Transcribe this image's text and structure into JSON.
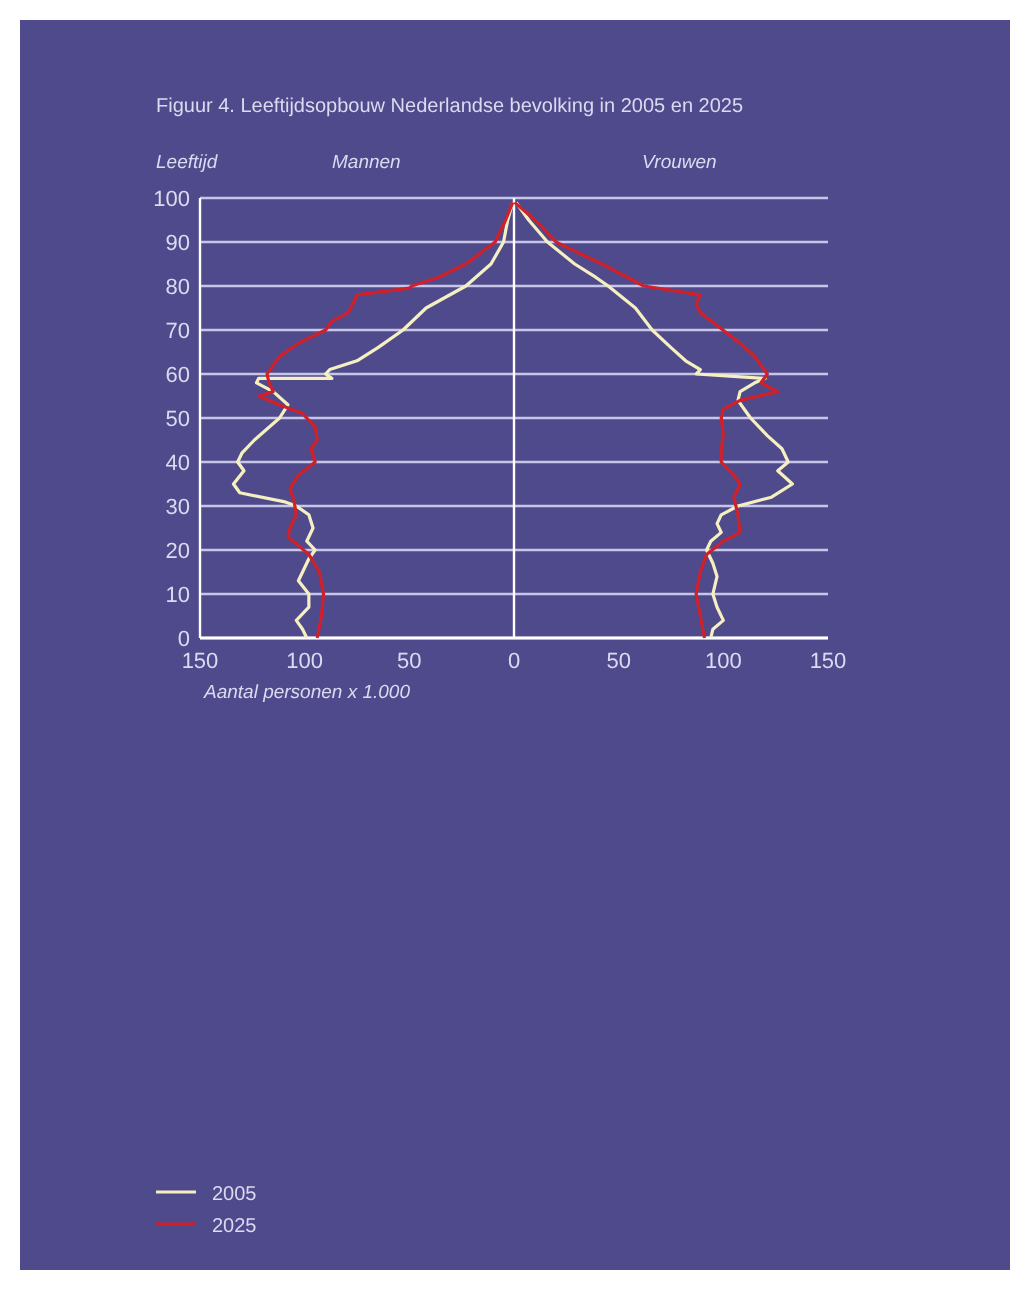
{
  "chart_data": {
    "type": "line",
    "title": "Figuur 4. Leeftijdsopbouw Nederlandse bevolking in 2005 en 2025",
    "ylabel": "Leeftijd",
    "xlabel": "Aantal personen x 1.000",
    "annotations": [
      "Mannen",
      "Vrouwen"
    ],
    "xlim": [
      -150,
      150
    ],
    "xticks": [
      {
        "value": -150,
        "label": "150"
      },
      {
        "value": -100,
        "label": "100"
      },
      {
        "value": -50,
        "label": "50"
      },
      0,
      50,
      100,
      150
    ],
    "ylim": [
      0,
      100
    ],
    "yticks": [
      0,
      10,
      20,
      30,
      40,
      50,
      60,
      70,
      80,
      90,
      100
    ],
    "grid": "y",
    "legend": "bottom left",
    "line_style": "solid",
    "marker": "none",
    "ref_lines": [
      {
        "axis": "x",
        "value": 0,
        "color": "#ffffff"
      }
    ],
    "series": [
      {
        "name": "2005",
        "color": "#f5f0c0",
        "x": [
          -99,
          -101,
          -104,
          -98,
          -98,
          -103,
          -101,
          -98,
          -95,
          -99,
          -96,
          -98,
          -104,
          -110,
          -131,
          -134,
          -129,
          -132,
          -130,
          -124,
          -112,
          -108,
          -115,
          -123,
          -122,
          -87,
          -90,
          -88,
          -75,
          -65,
          -53,
          -42,
          -23,
          -11,
          -5,
          -3,
          -0.6
        ],
        "values": [
          0,
          2,
          4,
          7,
          10,
          13,
          15,
          18,
          20,
          22,
          25,
          28,
          30,
          31,
          33,
          35,
          38,
          40,
          42,
          45,
          50,
          53,
          56,
          58,
          59,
          59,
          60,
          61,
          63,
          66,
          70,
          75,
          80,
          85,
          90,
          95,
          99
        ]
      },
      {
        "color": "#f5f0c0",
        "x": [
          94,
          95,
          100,
          97,
          95,
          97,
          95,
          92,
          94,
          99,
          97,
          99,
          107,
          123,
          133,
          126,
          131,
          128,
          121,
          113,
          110,
          107,
          108,
          115,
          120,
          87,
          89,
          82,
          75,
          66,
          58,
          45,
          39,
          29,
          16,
          7,
          1
        ],
        "values": [
          0,
          2,
          4,
          7,
          10,
          14,
          17,
          20,
          22,
          24,
          26,
          28,
          30,
          32,
          35,
          38,
          40,
          43,
          46,
          50,
          52,
          54,
          56,
          58,
          59,
          60,
          61,
          63,
          66,
          70,
          75,
          80,
          82,
          85,
          90,
          95,
          99
        ]
      },
      {
        "name": "2025",
        "color": "#d0202a",
        "x": [
          -94,
          -92,
          -91,
          -93,
          -98,
          -103,
          -108,
          -107,
          -104,
          -105,
          -107,
          -103,
          -95,
          -97,
          -94,
          -95,
          -101,
          -112,
          -122,
          -115,
          -117,
          -118,
          -112,
          -103,
          -90,
          -87,
          -79,
          -76,
          -75,
          -50,
          -49,
          -36,
          -23,
          -9,
          -4,
          -0.6
        ],
        "values": [
          0,
          5,
          10,
          15,
          19,
          21,
          23,
          25,
          28,
          31,
          34,
          37,
          40,
          43,
          45,
          48,
          51,
          53,
          55,
          56,
          58,
          60,
          64,
          67,
          70,
          72,
          74,
          77,
          78,
          79.5,
          80,
          82,
          85,
          90,
          95,
          99
        ]
      },
      {
        "color": "#d0202a",
        "x": [
          91,
          89,
          87,
          89,
          92,
          100,
          108,
          107,
          105,
          108,
          105,
          99,
          99,
          100,
          99,
          100,
          108,
          126,
          118,
          121,
          115,
          108,
          97,
          89,
          87,
          89,
          62,
          42,
          20,
          10,
          0.3
        ],
        "values": [
          0,
          5,
          10,
          15,
          19,
          22,
          24,
          28,
          32,
          35,
          37,
          40,
          43,
          46,
          50,
          52,
          54,
          56,
          58,
          60,
          64,
          67,
          71,
          74,
          76,
          78,
          80,
          85,
          90,
          95,
          99
        ]
      }
    ]
  }
}
